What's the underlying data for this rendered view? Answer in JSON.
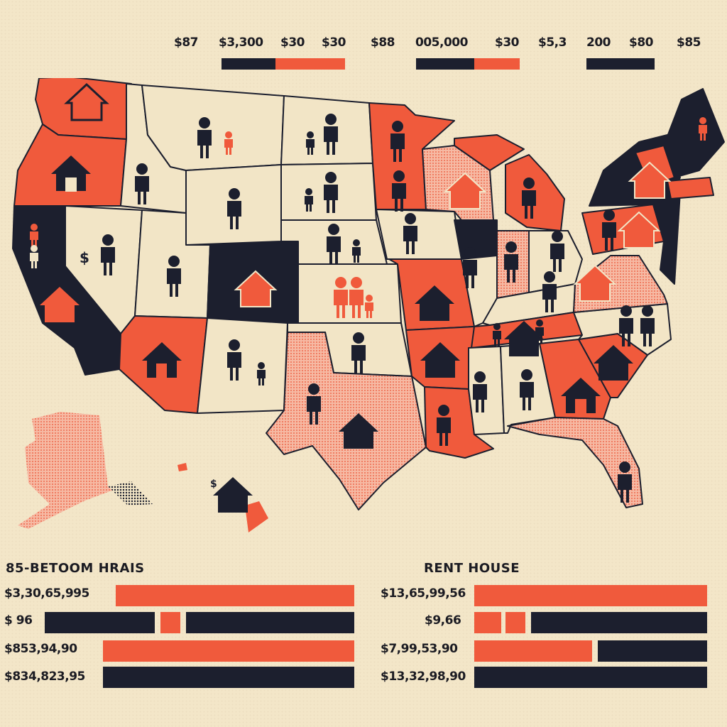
{
  "colors": {
    "background": "#f3e6c8",
    "orange": "#f05a3c",
    "navy": "#1c1f2e",
    "cream": "#f2e5c6",
    "pink": "#f2a48a"
  },
  "legend": {
    "numbers": [
      "$87",
      "$3,300",
      "$30",
      "$30",
      "$88",
      "005,000",
      "$30",
      "$5,3",
      "200",
      "$80",
      "$85"
    ]
  },
  "map": {
    "icons": [
      "house-icon",
      "person-icon",
      "child-icon",
      "dollar-sign"
    ],
    "dollar_labels": [
      "$",
      "$"
    ]
  },
  "panels": {
    "left": {
      "title": "85-BETOOM HRAIS",
      "rows": [
        {
          "label": "$3,30,65,995"
        },
        {
          "label": "$ 96"
        },
        {
          "label": "$853,94,90"
        },
        {
          "label": "$834,823,95"
        }
      ]
    },
    "right": {
      "title": "RENT  HOUSE",
      "rows": [
        {
          "label": "$13,65,99,56"
        },
        {
          "label": "$9,66"
        },
        {
          "label": "$7,99,53,90"
        },
        {
          "label": "$13,32,98,90"
        }
      ]
    }
  }
}
